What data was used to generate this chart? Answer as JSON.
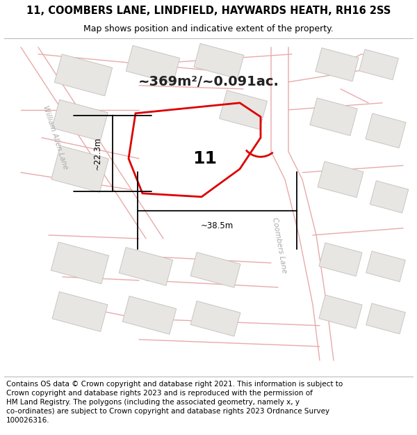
{
  "title": "11, COOMBERS LANE, LINDFIELD, HAYWARDS HEATH, RH16 2SS",
  "subtitle": "Map shows position and indicative extent of the property.",
  "area_text": "~369m²/~0.091ac.",
  "property_number": "11",
  "dim1_text": "~22.3m",
  "dim2_text": "~38.5m",
  "footer_lines": [
    "Contains OS data © Crown copyright and database right 2021. This information is subject to",
    "Crown copyright and database rights 2023 and is reproduced with the permission of",
    "HM Land Registry. The polygons (including the associated geometry, namely x, y",
    "co-ordinates) are subject to Crown copyright and database rights 2023 Ordnance Survey",
    "100026316."
  ],
  "map_bg": "#f5f4f2",
  "plot_fill": "none",
  "plot_edge": "#dd0000",
  "road_line_color": "#e8aaaa",
  "building_fill": "#e8e6e3",
  "building_edge": "#c8c4c0",
  "road_label_color": "#aaaaaa",
  "title_fontsize": 10.5,
  "subtitle_fontsize": 9,
  "area_fontsize": 14,
  "footer_fontsize": 7.5,
  "dim_fontsize": 8.5,
  "prop_num_fontsize": 18
}
